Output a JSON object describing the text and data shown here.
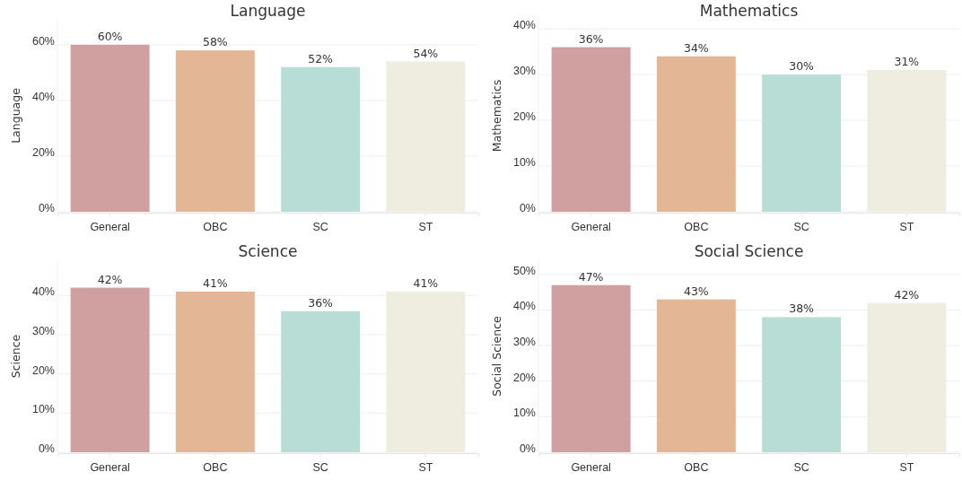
{
  "chart_data": [
    {
      "type": "bar",
      "title": "Language",
      "ylabel": "Language",
      "categories": [
        "General",
        "OBC",
        "SC",
        "ST"
      ],
      "values": [
        60,
        58,
        52,
        54
      ],
      "value_labels": [
        "60%",
        "58%",
        "52%",
        "54%"
      ],
      "colors": [
        "#cfa09f",
        "#e3b796",
        "#b8ddd6",
        "#efece0"
      ],
      "ylim": [
        0,
        69
      ],
      "yticks": [
        {
          "value": 0,
          "label": "0%"
        },
        {
          "value": 20,
          "label": "20%"
        },
        {
          "value": 40,
          "label": "40%"
        },
        {
          "value": 60,
          "label": "60%"
        }
      ],
      "grid": "y"
    },
    {
      "type": "bar",
      "title": "Mathematics",
      "ylabel": "Mathematics",
      "categories": [
        "General",
        "OBC",
        "SC",
        "ST"
      ],
      "values": [
        36,
        34,
        30,
        31
      ],
      "value_labels": [
        "36%",
        "34%",
        "30%",
        "31%"
      ],
      "colors": [
        "#cfa09f",
        "#e3b796",
        "#b8ddd6",
        "#efece0"
      ],
      "ylim": [
        0,
        42
      ],
      "yticks": [
        {
          "value": 0,
          "label": "0%"
        },
        {
          "value": 10,
          "label": "10%"
        },
        {
          "value": 20,
          "label": "20%"
        },
        {
          "value": 30,
          "label": "30%"
        },
        {
          "value": 40,
          "label": "40%"
        }
      ],
      "grid": "y"
    },
    {
      "type": "bar",
      "title": "Science",
      "ylabel": "Science",
      "categories": [
        "General",
        "OBC",
        "SC",
        "ST"
      ],
      "values": [
        42,
        41,
        36,
        41
      ],
      "value_labels": [
        "42%",
        "41%",
        "36%",
        "41%"
      ],
      "colors": [
        "#cfa09f",
        "#e3b796",
        "#b8ddd6",
        "#efece0"
      ],
      "ylim": [
        0,
        49
      ],
      "yticks": [
        {
          "value": 0,
          "label": "0%"
        },
        {
          "value": 10,
          "label": "10%"
        },
        {
          "value": 20,
          "label": "20%"
        },
        {
          "value": 30,
          "label": "30%"
        },
        {
          "value": 40,
          "label": "40%"
        }
      ],
      "grid": "y"
    },
    {
      "type": "bar",
      "title": "Social Science",
      "ylabel": "Social Science",
      "categories": [
        "General",
        "OBC",
        "SC",
        "ST"
      ],
      "values": [
        47,
        43,
        38,
        42
      ],
      "value_labels": [
        "47%",
        "43%",
        "38%",
        "42%"
      ],
      "colors": [
        "#cfa09f",
        "#e3b796",
        "#b8ddd6",
        "#efece0"
      ],
      "ylim": [
        0,
        54
      ],
      "yticks": [
        {
          "value": 0,
          "label": "0%"
        },
        {
          "value": 10,
          "label": "10%"
        },
        {
          "value": 20,
          "label": "20%"
        },
        {
          "value": 30,
          "label": "30%"
        },
        {
          "value": 40,
          "label": "40%"
        },
        {
          "value": 50,
          "label": "50%"
        }
      ],
      "grid": "y"
    }
  ]
}
